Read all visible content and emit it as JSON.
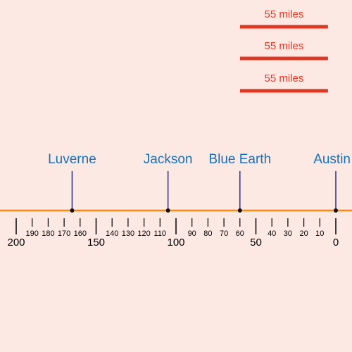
{
  "axis": {
    "range": [
      200,
      0
    ],
    "major_ticks": [
      200,
      150,
      100,
      50,
      0
    ],
    "minor_ticks": [
      190,
      180,
      170,
      160,
      140,
      130,
      120,
      110,
      90,
      80,
      70,
      60,
      40,
      30,
      20,
      10
    ]
  },
  "cities": [
    {
      "label": "Luverne",
      "value": 165
    },
    {
      "label": "Jackson",
      "value": 105
    },
    {
      "label": "Blue Earth",
      "value": 60
    },
    {
      "label": "Austin",
      "value": 0
    }
  ],
  "scale_bars": [
    {
      "label": "55 miles",
      "value": 55
    },
    {
      "label": "55 miles",
      "value": 55
    },
    {
      "label": "55 miles",
      "value": 55
    }
  ]
}
